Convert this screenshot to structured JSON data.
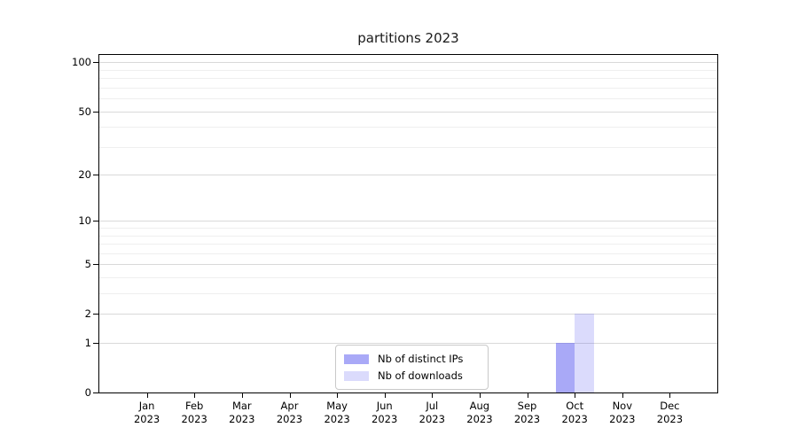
{
  "chart_data": {
    "type": "bar",
    "title": "partitions 2023",
    "categories": [
      "Jan 2023",
      "Feb 2023",
      "Mar 2023",
      "Apr 2023",
      "May 2023",
      "Jun 2023",
      "Jul 2023",
      "Aug 2023",
      "Sep 2023",
      "Oct 2023",
      "Nov 2023",
      "Dec 2023"
    ],
    "x_tick_lines": {
      "months": [
        "Jan",
        "Feb",
        "Mar",
        "Apr",
        "May",
        "Jun",
        "Jul",
        "Aug",
        "Sep",
        "Oct",
        "Nov",
        "Dec"
      ],
      "year": "2023"
    },
    "series": [
      {
        "name": "Nb of distinct IPs",
        "color": "#5a5af085",
        "values": [
          0,
          0,
          0,
          0,
          0,
          0,
          0,
          0,
          0,
          1,
          0,
          0
        ]
      },
      {
        "name": "Nb of downloads",
        "color": "#5a5af038",
        "values": [
          0,
          0,
          0,
          0,
          0,
          0,
          0,
          0,
          0,
          2,
          0,
          0
        ]
      }
    ],
    "xlabel": "",
    "ylabel": "",
    "y_ticks": [
      0,
      1,
      2,
      5,
      10,
      20,
      50,
      100
    ],
    "y_minor_ticks": [
      3,
      4,
      6,
      7,
      8,
      9,
      30,
      40,
      60,
      70,
      80,
      90
    ],
    "y_scale": "log1p",
    "ylim": [
      0,
      111
    ],
    "grid": true,
    "legend": {
      "position": "lower center",
      "entries": [
        "Nb of distinct IPs",
        "Nb of downloads"
      ]
    },
    "colors": {
      "grid_major": "#d9d9d9",
      "grid_minor": "#efefef",
      "axis": "#000000",
      "bar_base": "#5a5af0"
    }
  }
}
